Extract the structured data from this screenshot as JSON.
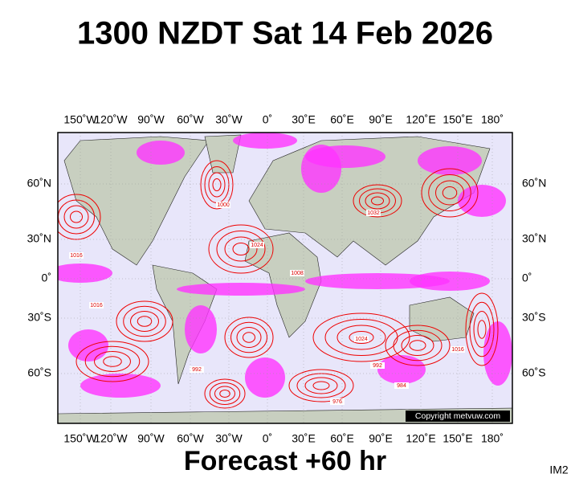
{
  "header": {
    "title": "1300 NZDT Sat 14 Feb 2026"
  },
  "map": {
    "longitude_labels": [
      "150˚W",
      "120˚W",
      "90˚W",
      "60˚W",
      "30˚W",
      "0˚",
      "30˚E",
      "60˚E",
      "90˚E",
      "120˚E",
      "150˚E",
      "180˚"
    ],
    "latitude_labels": [
      "60˚N",
      "30˚N",
      "0˚",
      "30˚S",
      "60˚S"
    ],
    "isobar_labels": [
      "1016",
      "1024",
      "1000",
      "992",
      "1032",
      "1008",
      "984",
      "976",
      "1016",
      "1024",
      "992",
      "1016"
    ],
    "copyright": "Copyright metvuw.com"
  },
  "footer": {
    "forecast": "Forecast +60 hr",
    "code": "IM2"
  }
}
